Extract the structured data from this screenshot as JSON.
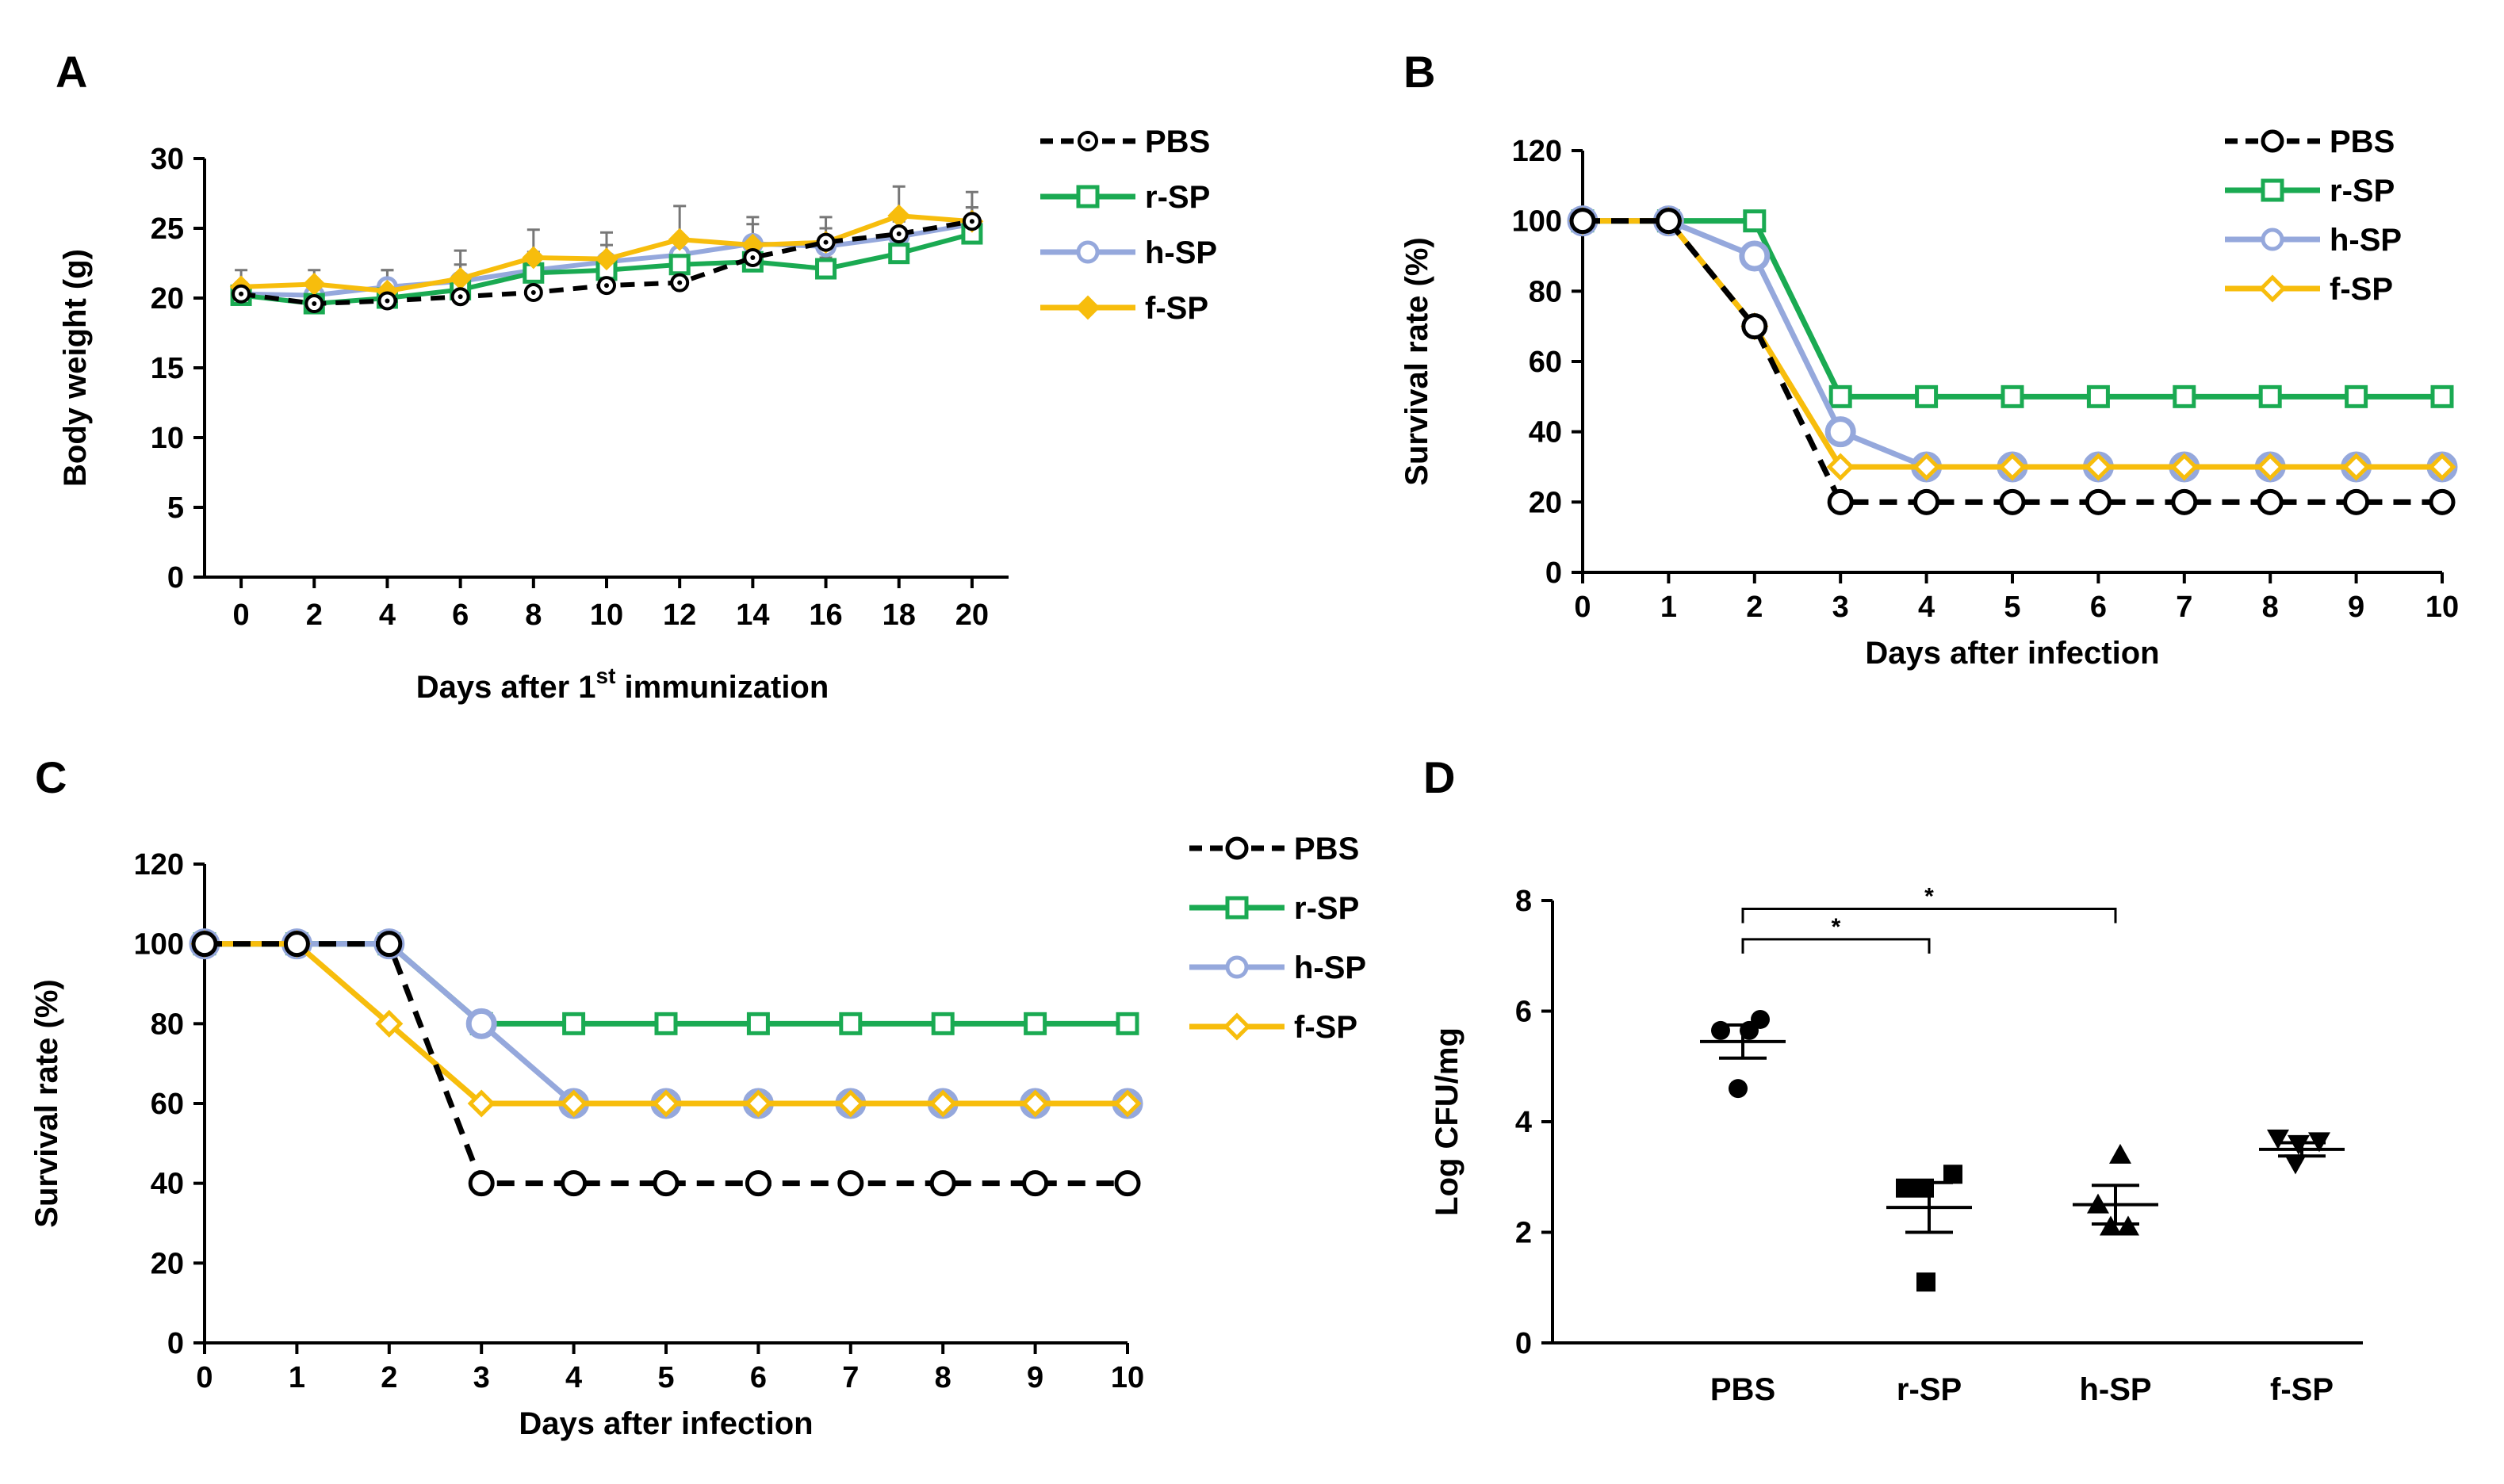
{
  "colors": {
    "PBS": "#000000",
    "r-SP": "#1aaa52",
    "h-SP": "#95a8dc",
    "f-SP": "#f7bd0c",
    "axis": "#000000",
    "errorbar": "#777777"
  },
  "chart_data": [
    {
      "type": "line",
      "panel": "A",
      "xlabel": "Days after 1st immunization",
      "xlabel_main": "Days after 1",
      "xlabel_sup": "st",
      "xlabel_tail": " immunization",
      "ylabel": "Body weight (g)",
      "x": [
        0,
        2,
        4,
        6,
        8,
        10,
        12,
        14,
        16,
        18,
        20
      ],
      "xlim": [
        -1,
        21
      ],
      "ylim": [
        0,
        30
      ],
      "yticks": [
        0,
        5,
        10,
        15,
        20,
        25,
        30
      ],
      "legend": [
        "PBS",
        "r-SP",
        "h-SP",
        "f-SP"
      ],
      "series": [
        {
          "name": "PBS",
          "values": [
            20.3,
            19.6,
            19.8,
            20.1,
            20.4,
            20.9,
            21.1,
            22.9,
            24.0,
            24.6,
            25.5
          ],
          "err": [
            0.8,
            0.7,
            0.7,
            0.8,
            0.9,
            0.8,
            0.9,
            0.9,
            1.0,
            0.9,
            1.0
          ]
        },
        {
          "name": "r-SP",
          "values": [
            20.2,
            19.6,
            20.0,
            20.6,
            21.8,
            22.0,
            22.4,
            22.6,
            22.1,
            23.2,
            24.6
          ],
          "err": [
            0.6,
            0.7,
            0.7,
            0.8,
            0.8,
            0.8,
            0.8,
            0.8,
            0.8,
            0.8,
            0.9
          ]
        },
        {
          "name": "h-SP",
          "values": [
            20.3,
            20.2,
            20.8,
            21.2,
            22.0,
            22.6,
            23.1,
            23.9,
            23.7,
            24.4,
            25.3
          ],
          "err": [
            0.8,
            1.0,
            1.2,
            1.2,
            1.3,
            1.2,
            1.3,
            1.4,
            1.3,
            1.3,
            1.2
          ]
        },
        {
          "name": "f-SP",
          "values": [
            20.8,
            21.0,
            20.5,
            21.4,
            22.9,
            22.8,
            24.2,
            23.8,
            24.0,
            25.9,
            25.5
          ],
          "err": [
            1.2,
            1.0,
            1.5,
            2.0,
            2.0,
            1.9,
            2.4,
            2.0,
            1.8,
            2.1,
            2.1
          ]
        }
      ]
    },
    {
      "type": "line",
      "panel": "B",
      "xlabel": "Days after infection",
      "ylabel": "Survival rate (%)",
      "x": [
        0,
        1,
        2,
        3,
        4,
        5,
        6,
        7,
        8,
        9,
        10
      ],
      "xlim": [
        0,
        10
      ],
      "ylim": [
        0,
        120
      ],
      "yticks": [
        0,
        20,
        40,
        60,
        80,
        100,
        120
      ],
      "legend": [
        "PBS",
        "r-SP",
        "h-SP",
        "f-SP"
      ],
      "series": [
        {
          "name": "PBS",
          "values": [
            100,
            100,
            70,
            20,
            20,
            20,
            20,
            20,
            20,
            20,
            20
          ]
        },
        {
          "name": "r-SP",
          "values": [
            100,
            100,
            100,
            50,
            50,
            50,
            50,
            50,
            50,
            50,
            50
          ]
        },
        {
          "name": "h-SP",
          "values": [
            100,
            100,
            90,
            40,
            30,
            30,
            30,
            30,
            30,
            30,
            30
          ]
        },
        {
          "name": "f-SP",
          "values": [
            100,
            100,
            70,
            30,
            30,
            30,
            30,
            30,
            30,
            30,
            30
          ]
        }
      ]
    },
    {
      "type": "line",
      "panel": "C",
      "xlabel": "Days after infection",
      "ylabel": "Survival rate (%)",
      "x": [
        0,
        1,
        2,
        3,
        4,
        5,
        6,
        7,
        8,
        9,
        10
      ],
      "xlim": [
        0,
        10
      ],
      "ylim": [
        0,
        120
      ],
      "yticks": [
        0,
        20,
        40,
        60,
        80,
        100,
        120
      ],
      "legend": [
        "PBS",
        "r-SP",
        "h-SP",
        "f-SP"
      ],
      "series": [
        {
          "name": "PBS",
          "values": [
            100,
            100,
            100,
            40,
            40,
            40,
            40,
            40,
            40,
            40,
            40
          ]
        },
        {
          "name": "r-SP",
          "values": [
            100,
            100,
            100,
            80,
            80,
            80,
            80,
            80,
            80,
            80,
            80
          ]
        },
        {
          "name": "h-SP",
          "values": [
            100,
            100,
            100,
            80,
            60,
            60,
            60,
            60,
            60,
            60,
            60
          ]
        },
        {
          "name": "f-SP",
          "values": [
            100,
            100,
            80,
            60,
            60,
            60,
            60,
            60,
            60,
            60,
            60
          ]
        }
      ]
    },
    {
      "type": "scatter",
      "panel": "D",
      "xlabel": "",
      "ylabel": "Log CFU/mg",
      "categories": [
        "PBS",
        "r-SP",
        "h-SP",
        "f-SP"
      ],
      "ylim": [
        0,
        8
      ],
      "yticks": [
        0,
        2,
        4,
        6,
        8
      ],
      "groups": [
        {
          "name": "PBS",
          "marker": "circle",
          "points": [
            5.65,
            5.65,
            5.85,
            4.6
          ],
          "mean": 5.45,
          "sem": 0.3
        },
        {
          "name": "r-SP",
          "marker": "square",
          "points": [
            2.8,
            2.8,
            3.05,
            1.1
          ],
          "mean": 2.45,
          "sem": 0.45
        },
        {
          "name": "h-SP",
          "marker": "triangle-up",
          "points": [
            3.4,
            2.5,
            2.1,
            2.1
          ],
          "mean": 2.5,
          "sem": 0.35
        },
        {
          "name": "f-SP",
          "marker": "triangle-down",
          "points": [
            3.7,
            3.6,
            3.65,
            3.25
          ],
          "mean": 3.5,
          "sem": 0.12
        }
      ],
      "significance": [
        {
          "from": "PBS",
          "to": "r-SP",
          "label": "*"
        },
        {
          "from": "PBS",
          "to": "h-SP",
          "label": "*"
        }
      ]
    }
  ]
}
